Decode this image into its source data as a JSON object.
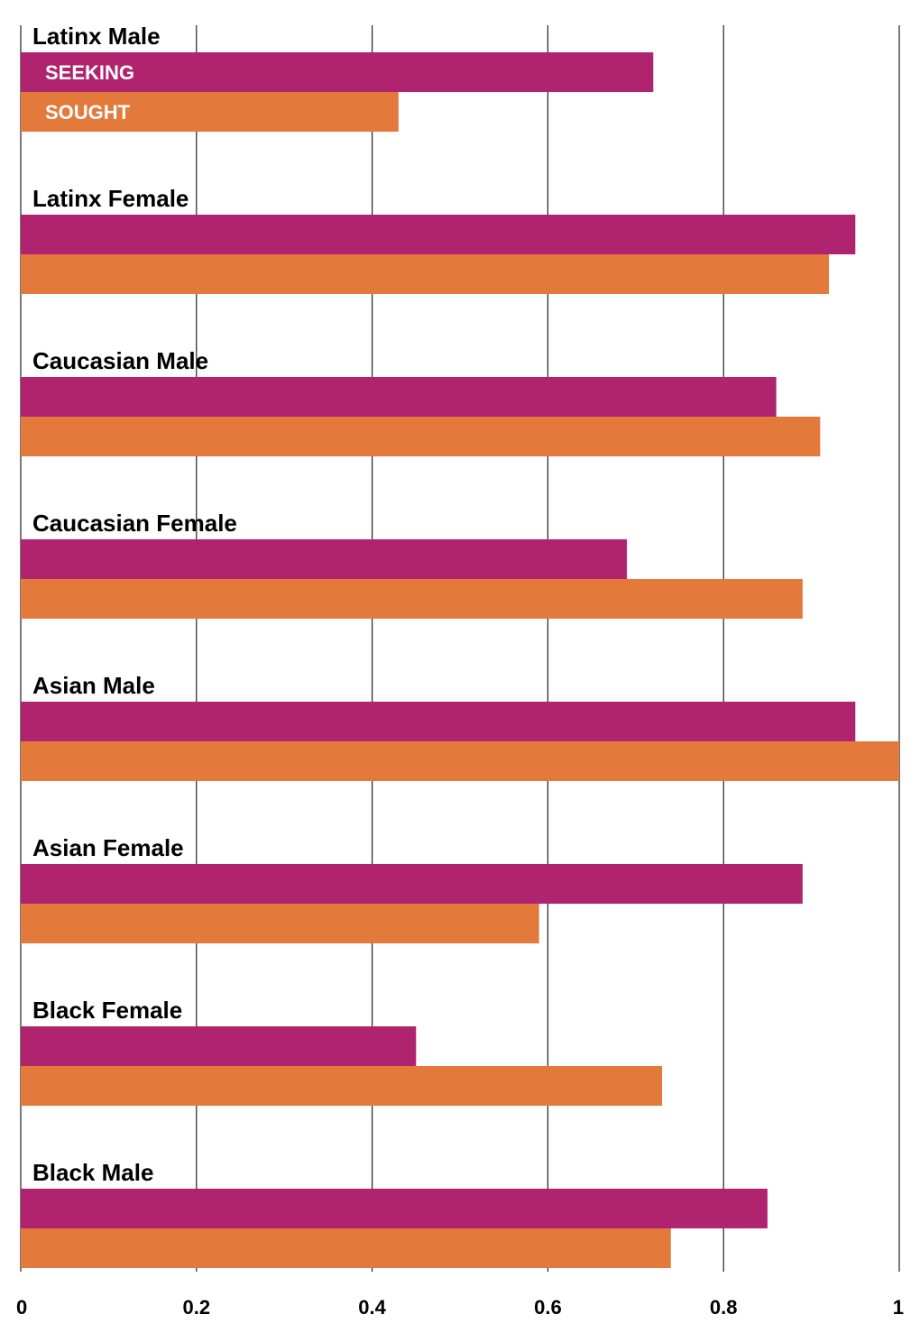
{
  "chart_data": {
    "type": "bar",
    "orientation": "horizontal",
    "categories": [
      "Latinx Male",
      "Latinx Female",
      "Caucasian Male",
      "Caucasian Female",
      "Asian Male",
      "Asian Female",
      "Black Female",
      "Black Male"
    ],
    "series": [
      {
        "name": "SEEKING",
        "color": "#b0246f",
        "values": [
          0.72,
          0.95,
          0.86,
          0.69,
          0.95,
          0.89,
          0.45,
          0.85
        ]
      },
      {
        "name": "SOUGHT",
        "color": "#e3793b",
        "values": [
          0.43,
          0.92,
          0.91,
          0.89,
          1.0,
          0.59,
          0.73,
          0.74
        ]
      }
    ],
    "xlim": [
      0,
      1
    ],
    "x_ticks": [
      "0",
      "0.2",
      "0.4",
      "0.6",
      "0.8",
      "1"
    ],
    "grid": "vertical",
    "legend_placement": "inside first bars",
    "title": "",
    "xlabel": "",
    "ylabel": ""
  }
}
